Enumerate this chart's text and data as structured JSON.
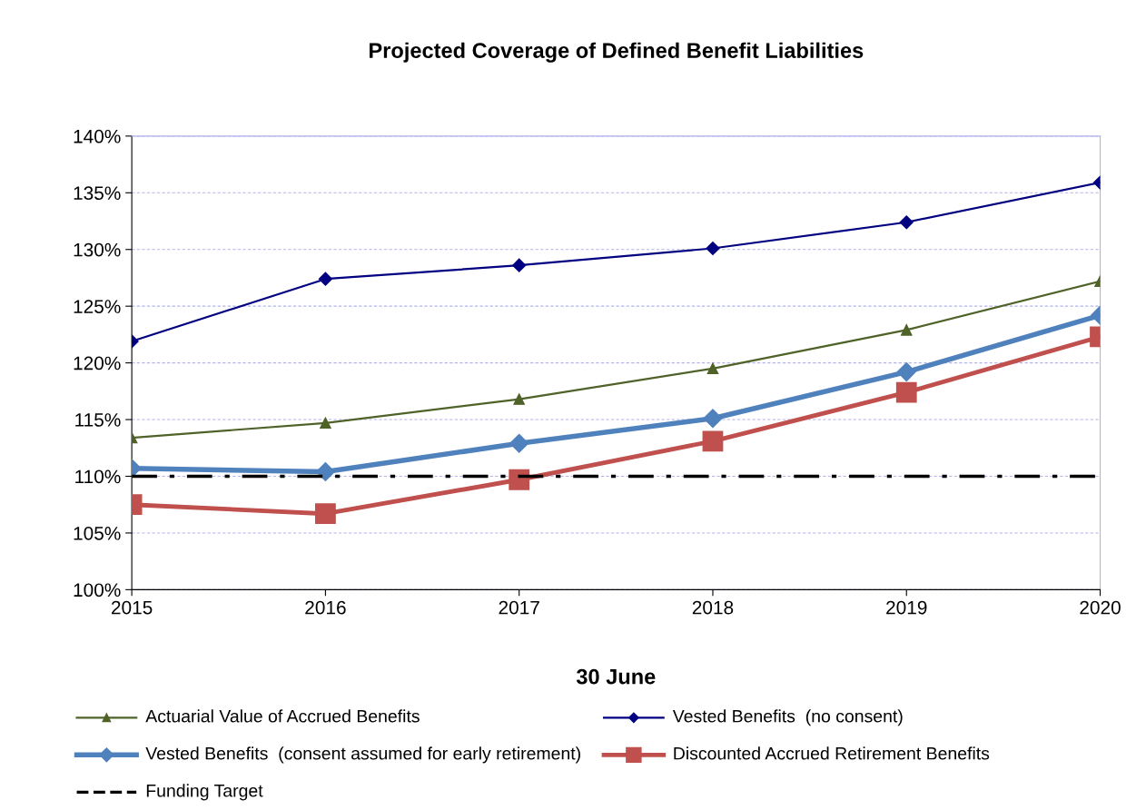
{
  "chart_data": {
    "type": "line",
    "title": "Projected Coverage of Defined Benefit Liabilities",
    "xlabel": "30 June",
    "x": [
      2015,
      2016,
      2017,
      2018,
      2019,
      2020
    ],
    "series": [
      {
        "name": "Actuarial Value of Accrued Benefits",
        "color": "#4f6228",
        "marker": "triangle",
        "values": [
          113.4,
          114.7,
          116.8,
          119.5,
          122.9,
          127.2
        ]
      },
      {
        "name": "Vested Benefits  (no consent)",
        "color": "#000080",
        "marker": "diamond",
        "values": [
          121.9,
          127.4,
          128.6,
          130.1,
          132.4,
          135.9
        ]
      },
      {
        "name": "Vested Benefits  (consent assumed for early retirement)",
        "color": "#4f81bd",
        "marker": "diamond",
        "values": [
          110.7,
          110.4,
          112.9,
          115.1,
          119.2,
          124.2
        ]
      },
      {
        "name": "Discounted Accrued Retirement Benefits",
        "color": "#c0504d",
        "marker": "square",
        "values": [
          107.5,
          106.7,
          109.7,
          113.1,
          117.4,
          122.3
        ]
      },
      {
        "name": "Funding Target",
        "color": "#000000",
        "marker": "none",
        "line_style": "dashdot",
        "values": [
          110,
          110,
          110,
          110,
          110,
          110
        ]
      }
    ],
    "xlim": [
      2015,
      2020
    ],
    "xticks": [
      2015,
      2016,
      2017,
      2018,
      2019,
      2020
    ],
    "ylim": [
      100,
      140
    ],
    "yticks": [
      {
        "value": 100,
        "label": "100%"
      },
      {
        "value": 105,
        "label": "105%"
      },
      {
        "value": 110,
        "label": "110%"
      },
      {
        "value": 115,
        "label": "115%"
      },
      {
        "value": 120,
        "label": "120%"
      },
      {
        "value": 125,
        "label": "125%"
      },
      {
        "value": 130,
        "label": "130%"
      },
      {
        "value": 135,
        "label": "135%"
      },
      {
        "value": 140,
        "label": "140%"
      }
    ],
    "grid": "y",
    "legend": "bottom"
  }
}
